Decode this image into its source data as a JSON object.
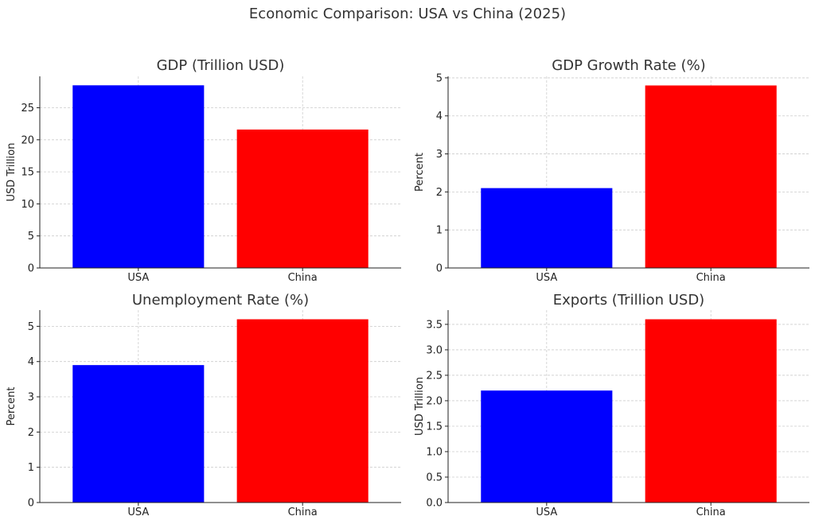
{
  "figure": {
    "title": "Economic Comparison: USA vs China (2025)"
  },
  "chart_data": [
    {
      "type": "bar",
      "title": "GDP (Trillion USD)",
      "xlabel": "",
      "ylabel": "USD Trillion",
      "categories": [
        "USA",
        "China"
      ],
      "values": [
        28.5,
        21.6
      ],
      "colors": [
        "#0000ff",
        "#ff0000"
      ],
      "ylim": [
        0,
        29.9
      ],
      "yticks": [
        0,
        5,
        10,
        15,
        20,
        25
      ],
      "ytick_labels": [
        "0",
        "5",
        "10",
        "15",
        "20",
        "25"
      ],
      "grid": true
    },
    {
      "type": "bar",
      "title": "GDP Growth Rate (%)",
      "xlabel": "",
      "ylabel": "Percent",
      "categories": [
        "USA",
        "China"
      ],
      "values": [
        2.1,
        4.8
      ],
      "colors": [
        "#0000ff",
        "#ff0000"
      ],
      "ylim": [
        0,
        5.04
      ],
      "yticks": [
        0,
        1,
        2,
        3,
        4,
        5
      ],
      "ytick_labels": [
        "0",
        "1",
        "2",
        "3",
        "4",
        "5"
      ],
      "grid": true
    },
    {
      "type": "bar",
      "title": "Unemployment Rate (%)",
      "xlabel": "",
      "ylabel": "Percent",
      "categories": [
        "USA",
        "China"
      ],
      "values": [
        3.9,
        5.2
      ],
      "colors": [
        "#0000ff",
        "#ff0000"
      ],
      "ylim": [
        0,
        5.46
      ],
      "yticks": [
        0,
        1,
        2,
        3,
        4,
        5
      ],
      "ytick_labels": [
        "0",
        "1",
        "2",
        "3",
        "4",
        "5"
      ],
      "grid": true
    },
    {
      "type": "bar",
      "title": "Exports (Trillion USD)",
      "xlabel": "",
      "ylabel": "USD Trillion",
      "categories": [
        "USA",
        "China"
      ],
      "values": [
        2.2,
        3.6
      ],
      "colors": [
        "#0000ff",
        "#ff0000"
      ],
      "ylim": [
        0,
        3.78
      ],
      "yticks": [
        0,
        0.5,
        1,
        1.5,
        2,
        2.5,
        3,
        3.5
      ],
      "ytick_labels": [
        "0.0",
        "0.5",
        "1.0",
        "1.5",
        "2.0",
        "2.5",
        "3.0",
        "3.5"
      ],
      "grid": true
    }
  ]
}
